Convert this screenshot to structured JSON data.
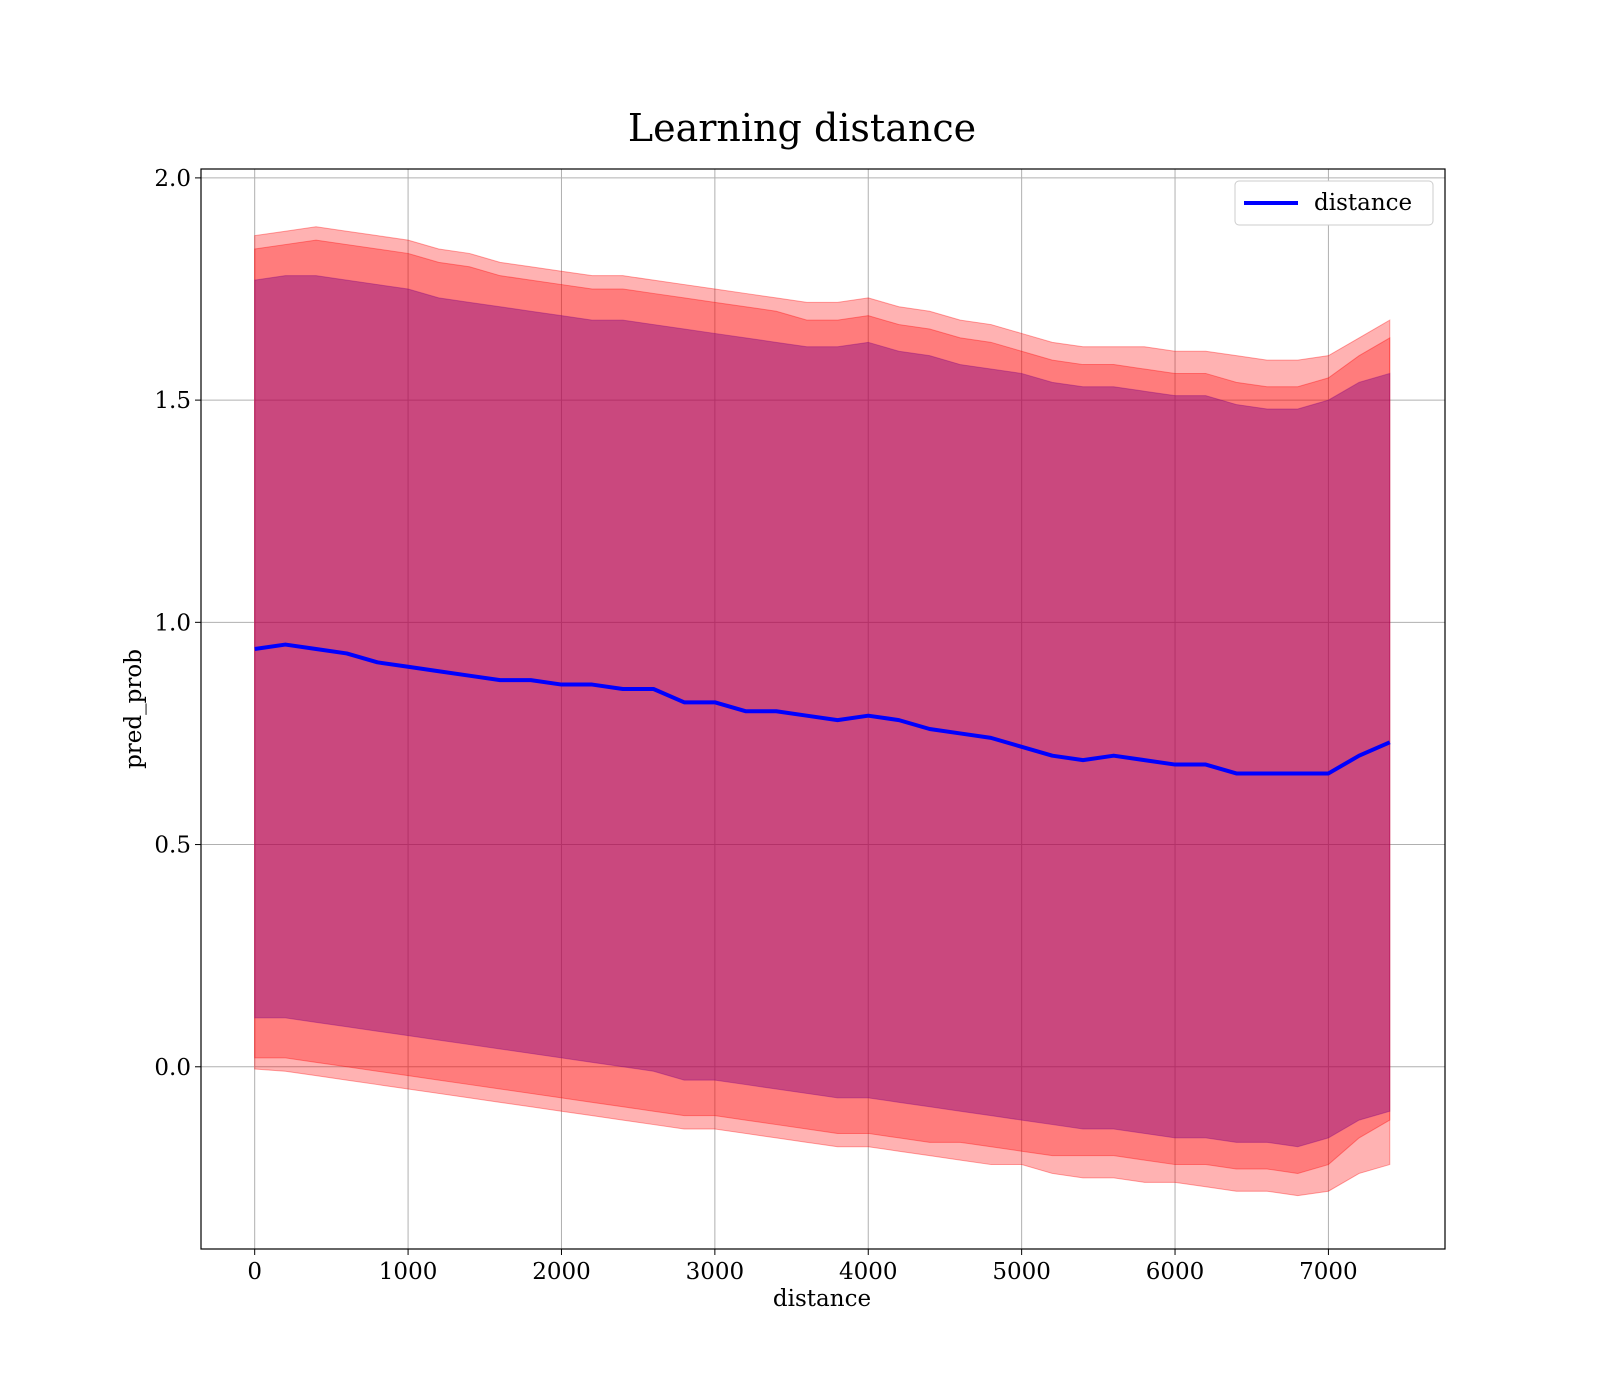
{
  "chart_data": {
    "type": "area",
    "title": "Learning distance",
    "xlabel": "distance",
    "ylabel": "pred_prob",
    "xlim": [
      -350,
      7760
    ],
    "ylim": [
      -0.41,
      2.02
    ],
    "xticks": [
      0,
      1000,
      2000,
      3000,
      4000,
      5000,
      6000,
      7000
    ],
    "xtick_labels": [
      "0",
      "1000",
      "2000",
      "3000",
      "4000",
      "5000",
      "6000",
      "7000"
    ],
    "yticks": [
      0.0,
      0.5,
      1.0,
      1.5,
      2.0
    ],
    "ytick_labels": [
      "0.0",
      "0.5",
      "1.0",
      "1.5",
      "2.0"
    ],
    "grid": true,
    "legend": {
      "placement": "top-right",
      "entries": [
        "distance"
      ]
    },
    "colors": {
      "line": "#0000ff",
      "band": "#ff0000",
      "band_inner": "#800080"
    },
    "x": [
      0,
      200,
      400,
      600,
      800,
      1000,
      1200,
      1400,
      1600,
      1800,
      2000,
      2200,
      2400,
      2600,
      2800,
      3000,
      3200,
      3400,
      3600,
      3800,
      4000,
      4200,
      4400,
      4600,
      4800,
      5000,
      5200,
      5400,
      5600,
      5800,
      6000,
      6200,
      6400,
      6600,
      6800,
      7000,
      7200,
      7400
    ],
    "series": [
      {
        "name": "distance",
        "values": [
          0.94,
          0.95,
          0.94,
          0.93,
          0.91,
          0.9,
          0.89,
          0.88,
          0.87,
          0.87,
          0.86,
          0.86,
          0.85,
          0.85,
          0.82,
          0.82,
          0.8,
          0.8,
          0.79,
          0.78,
          0.79,
          0.78,
          0.76,
          0.75,
          0.74,
          0.72,
          0.7,
          0.69,
          0.7,
          0.69,
          0.68,
          0.68,
          0.66,
          0.66,
          0.66,
          0.66,
          0.7,
          0.73
        ]
      }
    ],
    "bands": [
      {
        "lower": [
          -0.005,
          -0.01,
          -0.02,
          -0.03,
          -0.04,
          -0.05,
          -0.06,
          -0.07,
          -0.08,
          -0.09,
          -0.1,
          -0.11,
          -0.12,
          -0.13,
          -0.14,
          -0.14,
          -0.15,
          -0.16,
          -0.17,
          -0.18,
          -0.18,
          -0.19,
          -0.2,
          -0.21,
          -0.22,
          -0.22,
          -0.24,
          -0.25,
          -0.25,
          -0.26,
          -0.26,
          -0.27,
          -0.28,
          -0.28,
          -0.29,
          -0.28,
          -0.24,
          -0.22
        ],
        "upper": [
          1.87,
          1.88,
          1.89,
          1.88,
          1.87,
          1.86,
          1.84,
          1.83,
          1.81,
          1.8,
          1.79,
          1.78,
          1.78,
          1.77,
          1.76,
          1.75,
          1.74,
          1.73,
          1.72,
          1.72,
          1.73,
          1.71,
          1.7,
          1.68,
          1.67,
          1.65,
          1.63,
          1.62,
          1.62,
          1.62,
          1.61,
          1.61,
          1.6,
          1.59,
          1.59,
          1.6,
          1.64,
          1.68
        ]
      },
      {
        "lower": [
          0.02,
          0.02,
          0.01,
          0.0,
          -0.01,
          -0.02,
          -0.03,
          -0.04,
          -0.05,
          -0.06,
          -0.07,
          -0.08,
          -0.09,
          -0.1,
          -0.11,
          -0.11,
          -0.12,
          -0.13,
          -0.14,
          -0.15,
          -0.15,
          -0.16,
          -0.17,
          -0.17,
          -0.18,
          -0.19,
          -0.2,
          -0.2,
          -0.2,
          -0.21,
          -0.22,
          -0.22,
          -0.23,
          -0.23,
          -0.24,
          -0.22,
          -0.16,
          -0.12
        ],
        "upper": [
          1.84,
          1.85,
          1.86,
          1.85,
          1.84,
          1.83,
          1.81,
          1.8,
          1.78,
          1.77,
          1.76,
          1.75,
          1.75,
          1.74,
          1.73,
          1.72,
          1.71,
          1.7,
          1.68,
          1.68,
          1.69,
          1.67,
          1.66,
          1.64,
          1.63,
          1.61,
          1.59,
          1.58,
          1.58,
          1.57,
          1.56,
          1.56,
          1.54,
          1.53,
          1.53,
          1.55,
          1.6,
          1.64
        ]
      },
      {
        "lower": [
          0.11,
          0.11,
          0.1,
          0.09,
          0.08,
          0.07,
          0.06,
          0.05,
          0.04,
          0.03,
          0.02,
          0.01,
          0.0,
          -0.01,
          -0.03,
          -0.03,
          -0.04,
          -0.05,
          -0.06,
          -0.07,
          -0.07,
          -0.08,
          -0.09,
          -0.1,
          -0.11,
          -0.12,
          -0.13,
          -0.14,
          -0.14,
          -0.15,
          -0.16,
          -0.16,
          -0.17,
          -0.17,
          -0.18,
          -0.16,
          -0.12,
          -0.1
        ],
        "upper": [
          1.77,
          1.78,
          1.78,
          1.77,
          1.76,
          1.75,
          1.73,
          1.72,
          1.71,
          1.7,
          1.69,
          1.68,
          1.68,
          1.67,
          1.66,
          1.65,
          1.64,
          1.63,
          1.62,
          1.62,
          1.63,
          1.61,
          1.6,
          1.58,
          1.57,
          1.56,
          1.54,
          1.53,
          1.53,
          1.52,
          1.51,
          1.51,
          1.49,
          1.48,
          1.48,
          1.5,
          1.54,
          1.56
        ]
      }
    ]
  }
}
